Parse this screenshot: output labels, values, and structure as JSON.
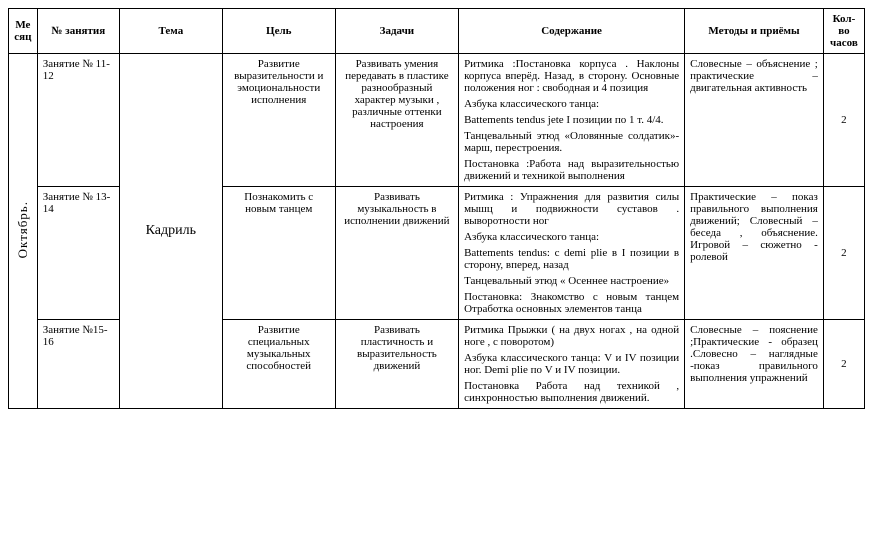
{
  "columns": {
    "month": "Месяц",
    "lesson": "№ занятия",
    "theme": "Тема",
    "goal": "Цель",
    "tasks": "Задачи",
    "content": "Содержание",
    "methods": "Методы и приёмы",
    "hours": "Кол-во часов"
  },
  "month": "Октябрь.",
  "theme": "Кадриль",
  "rows": [
    {
      "lesson": "Занятие № 11-12",
      "goal": "Развитие выразительности и эмоциональности исполнения",
      "tasks": "Развивать умения передавать в пластике разнообразный характер музыки , различные оттенки настроения",
      "content": [
        "Ритмика :Постановка корпуса . Наклоны корпуса вперёд. Назад, в сторону. Основные положения ног : свободная и 4 позиция",
        "Азбука классического  танца:",
        "Battements tendus jete I позиции по 1 т. 4/4.",
        "Танцевальный этюд «Оловянные солдатик»- марш, перестроения.",
        "Постановка :Работа над выразительностью движений и техникой выполнения"
      ],
      "methods": "Словесные – объяснение ; практические – двигательная активность",
      "hours": "2"
    },
    {
      "lesson": "Занятие № 13-14",
      "goal": "Познакомить с новым танцем",
      "tasks": "Развивать музыкальность в исполнении движений",
      "content": [
        "Ритмика : Упражнения для развития силы мышц и подвижности суставов . выворотности ног",
        "Азбука классического  танца:",
        " Battements tendus: c demi plie в I позиции в сторону, вперед, назад",
        "Танцевальный этюд « Осеннее настроение»",
        "Постановка: Знакомство с новым танцем Отработка основных элементов танца"
      ],
      "methods": "Практические – показ правильного выполнения движений; Словесный – беседа , объяснение. Игровой – сюжетно - ролевой",
      "hours": "2"
    },
    {
      "lesson": "Занятие №15-16",
      "goal": "Развитие специальных музыкальных способностей",
      "tasks": "Развивать пластичность и выразительность движений",
      "content": [
        "Ритмика Прыжки ( на двух ногах , на одной ноге , с поворотом)",
        "Азбука классического  танца: V и IV позиции ног. Demi plie по V и IV позиции.",
        "Постановка  Работа над техникой , синхронностью выполнения  движений."
      ],
      "methods": "Словесные – пояснение ;Практические - образец .Словесно – наглядные -показ правильного выполнения упражнений",
      "hours": "2"
    }
  ],
  "style": {
    "font_family": "Times New Roman",
    "font_size_pt": 8,
    "border_color": "#000000",
    "background_color": "#ffffff",
    "text_color": "#000000"
  }
}
